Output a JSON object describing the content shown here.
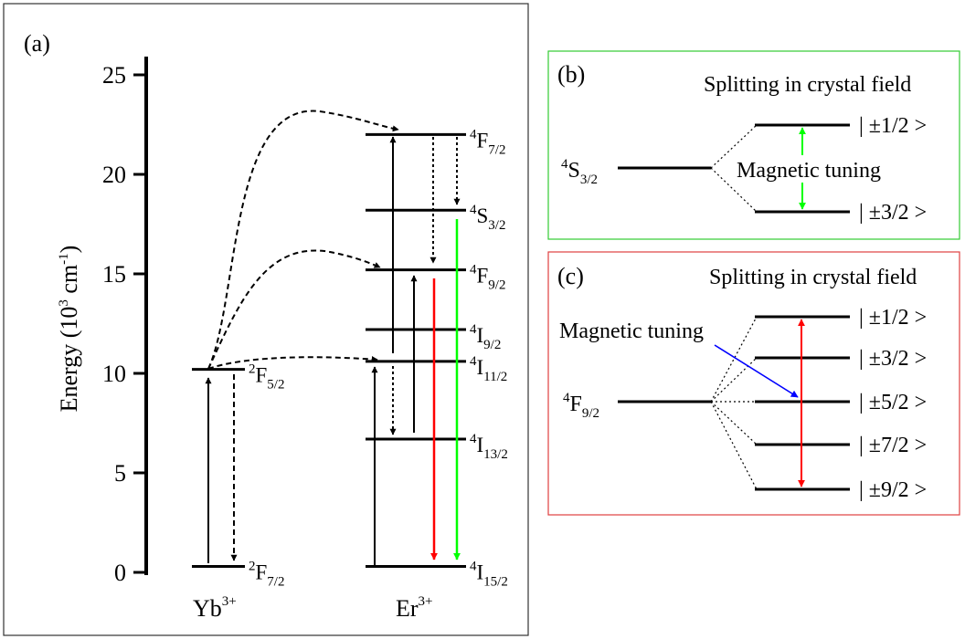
{
  "panel_a": {
    "label": "(a)",
    "y_axis": {
      "title": "Energy (10",
      "title_exp": "3",
      "title_unit": " cm",
      "title_unit_exp": "-1",
      "title_close": ")",
      "ticks": [
        "0",
        "5",
        "10",
        "15",
        "20",
        "25"
      ],
      "range": [
        0,
        26
      ]
    },
    "ions": {
      "yb": {
        "base": "Yb",
        "charge": "3+"
      },
      "er": {
        "base": "Er",
        "charge": "3+"
      }
    },
    "yb_levels": [
      {
        "energy": 0.3,
        "sup": "2",
        "letter": "F",
        "sub": "7/2"
      },
      {
        "energy": 10.2,
        "sup": "2",
        "letter": "F",
        "sub": "5/2"
      }
    ],
    "er_levels": [
      {
        "energy": 0.3,
        "sup": "4",
        "letter": "I",
        "sub": "15/2"
      },
      {
        "energy": 6.7,
        "sup": "4",
        "letter": "I",
        "sub": "13/2"
      },
      {
        "energy": 10.6,
        "sup": "4",
        "letter": "I",
        "sub": "11/2"
      },
      {
        "energy": 12.2,
        "sup": "4",
        "letter": "I",
        "sub": "9/2"
      },
      {
        "energy": 15.2,
        "sup": "4",
        "letter": "F",
        "sub": "9/2"
      },
      {
        "energy": 18.2,
        "sup": "4",
        "letter": "S",
        "sub": "3/2"
      },
      {
        "energy": 22.0,
        "sup": "4",
        "letter": "F",
        "sub": "7/2"
      }
    ],
    "colors": {
      "red_emission": "#ff0000",
      "green_emission": "#00ff00",
      "black": "#000000"
    }
  },
  "panel_b": {
    "label": "(b)",
    "title": "Splitting in crystal field",
    "level": {
      "sup": "4",
      "letter": "S",
      "sub": "3/2"
    },
    "sublevels": [
      "| ±1/2 >",
      "| ±3/2 >"
    ],
    "tuning_label": "Magnetic tuning",
    "border_color": "#33cc33",
    "arrow_color": "#00ff00"
  },
  "panel_c": {
    "label": "(c)",
    "title": "Splitting in crystal field",
    "level": {
      "sup": "4",
      "letter": "F",
      "sub": "9/2"
    },
    "sublevels": [
      "| ±1/2 >",
      "| ±3/2 >",
      "| ±5/2 >",
      "| ±7/2 >",
      "| ±9/2 >"
    ],
    "tuning_label": "Magnetic tuning",
    "border_color": "#e04040",
    "arrow_color": "#ff0000",
    "pointer_color": "#0000ff"
  }
}
